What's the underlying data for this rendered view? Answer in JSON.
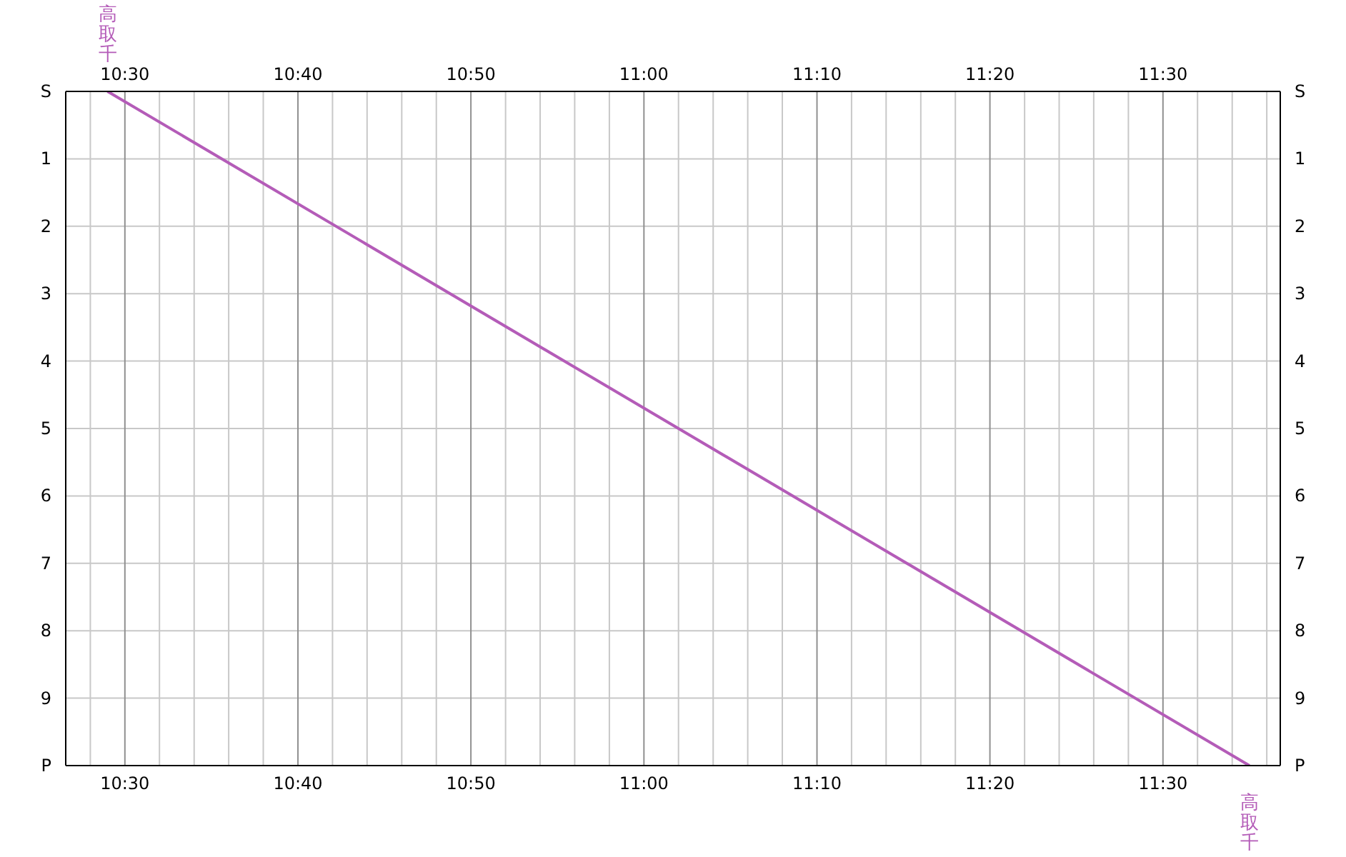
{
  "chart_data": {
    "type": "line",
    "x": [
      10.4833,
      11.5833
    ],
    "series": [
      {
        "color": "#b45cb8",
        "values": [
          0,
          10
        ]
      }
    ],
    "xlim": [
      10.443,
      11.613
    ],
    "xticks": [
      {
        "value": 10.4667,
        "label": null
      },
      {
        "value": 10.5,
        "label": "10:30"
      },
      {
        "value": 10.5333,
        "label": null
      },
      {
        "value": 10.5667,
        "label": null
      },
      {
        "value": 10.6,
        "label": null
      },
      {
        "value": 10.6333,
        "label": null
      },
      {
        "value": 10.6667,
        "label": "10:40"
      },
      {
        "value": 10.7,
        "label": null
      },
      {
        "value": 10.7333,
        "label": null
      },
      {
        "value": 10.7667,
        "label": null
      },
      {
        "value": 10.8,
        "label": null
      },
      {
        "value": 10.8333,
        "label": "10:50"
      },
      {
        "value": 10.8667,
        "label": null
      },
      {
        "value": 10.9,
        "label": null
      },
      {
        "value": 10.9333,
        "label": null
      },
      {
        "value": 10.9667,
        "label": null
      },
      {
        "value": 11,
        "label": "11:00"
      },
      {
        "value": 11.0333,
        "label": null
      },
      {
        "value": 11.0667,
        "label": null
      },
      {
        "value": 11.1,
        "label": null
      },
      {
        "value": 11.1333,
        "label": null
      },
      {
        "value": 11.1667,
        "label": "11:10"
      },
      {
        "value": 11.2,
        "label": null
      },
      {
        "value": 11.2333,
        "label": null
      },
      {
        "value": 11.2667,
        "label": null
      },
      {
        "value": 11.3,
        "label": null
      },
      {
        "value": 11.3333,
        "label": "11:20"
      },
      {
        "value": 11.3667,
        "label": null
      },
      {
        "value": 11.4,
        "label": null
      },
      {
        "value": 11.4333,
        "label": null
      },
      {
        "value": 11.4667,
        "label": null
      },
      {
        "value": 11.5,
        "label": "11:30"
      },
      {
        "value": 11.5333,
        "label": null
      },
      {
        "value": 11.5667,
        "label": null
      },
      {
        "value": 11.6,
        "label": null
      }
    ],
    "x2lim": [
      10.443,
      11.613
    ],
    "x2ticks": [
      {
        "value": 10.5,
        "label": "10:30"
      },
      {
        "value": 10.6667,
        "label": "10:40"
      },
      {
        "value": 10.8333,
        "label": "10:50"
      },
      {
        "value": 11,
        "label": "11:00"
      },
      {
        "value": 11.1667,
        "label": "11:10"
      },
      {
        "value": 11.3333,
        "label": "11:20"
      },
      {
        "value": 11.5,
        "label": "11:30"
      }
    ],
    "ylim": [
      10,
      0
    ],
    "yticks": [
      {
        "value": 0,
        "label": "S"
      },
      1,
      2,
      3,
      4,
      5,
      6,
      7,
      8,
      9,
      {
        "value": 10,
        "label": "P"
      }
    ],
    "y2lim": [
      10,
      0
    ],
    "y2ticks": [
      {
        "value": 0,
        "label": "S"
      },
      1,
      2,
      3,
      4,
      5,
      6,
      7,
      8,
      9,
      {
        "value": 10,
        "label": "P"
      }
    ],
    "grid": true,
    "annotations": [
      {
        "text": "高取千",
        "x": 10.4833,
        "y": 0
      },
      {
        "text": "高取千",
        "x": 11.5833,
        "y": 10
      }
    ]
  }
}
